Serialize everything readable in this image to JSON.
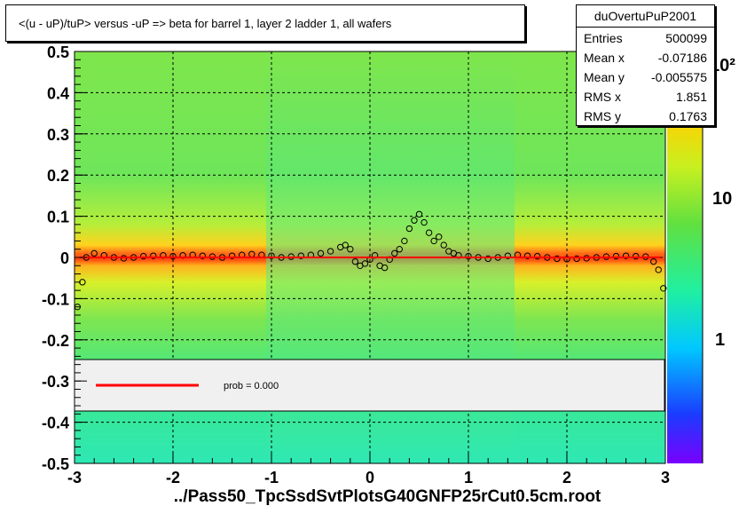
{
  "title": "<(u - uP)/tuP>  versus  -uP => beta for barrel 1, layer 2 ladder 1, all wafers",
  "stats": {
    "name": "duOvertuPuP2001",
    "rows": [
      {
        "label": "Entries",
        "value": "500099"
      },
      {
        "label": "Mean x",
        "value": "-0.07186"
      },
      {
        "label": "Mean y",
        "value": "-0.005575"
      },
      {
        "label": "RMS x",
        "value": "1.851"
      },
      {
        "label": "RMS y",
        "value": "0.1763"
      }
    ]
  },
  "footer": "../Pass50_TpcSsdSvtPlotsG40GNFP25rCut0.5cm.root",
  "legend": {
    "fit_label": "prob = 0.000"
  },
  "colors": {
    "fit_line": "#ff0000",
    "grid": "#000000"
  },
  "chart_data": {
    "type": "heatmap",
    "title": "<(u - uP)/tuP>  versus  -uP => beta for barrel 1, layer 2 ladder 1, all wafers",
    "xlim": [
      -3,
      3
    ],
    "ylim": [
      -0.5,
      0.5
    ],
    "x_ticks": [
      -3,
      -2,
      -1,
      0,
      1,
      2,
      3
    ],
    "x_tick_labels": [
      "-3",
      "-2",
      "-1",
      "0",
      "1",
      "2",
      "3"
    ],
    "y_ticks": [
      -0.5,
      -0.4,
      -0.3,
      -0.2,
      -0.1,
      0,
      0.1,
      0.2,
      0.3,
      0.4,
      0.5
    ],
    "y_tick_labels": [
      "-0.5",
      "-0.4",
      "-0.3",
      "-0.2",
      "-0.1",
      "0",
      "0.1",
      "0.2",
      "0.3",
      "0.4",
      "0.5"
    ],
    "grid": true,
    "colorbar": {
      "scale": "log",
      "tick_labels": [
        "1",
        "10",
        "10²"
      ]
    },
    "fit_line": {
      "name": "prob = 0.000",
      "y": 0
    },
    "profile_points": [
      {
        "x": -2.97,
        "y": -0.12
      },
      {
        "x": -2.92,
        "y": -0.06
      },
      {
        "x": -2.88,
        "y": 0.0
      },
      {
        "x": -2.8,
        "y": 0.01
      },
      {
        "x": -2.7,
        "y": 0.005
      },
      {
        "x": -2.6,
        "y": 0.0
      },
      {
        "x": -2.5,
        "y": -0.002
      },
      {
        "x": -2.4,
        "y": 0.0
      },
      {
        "x": -2.3,
        "y": 0.003
      },
      {
        "x": -2.2,
        "y": 0.004
      },
      {
        "x": -2.1,
        "y": 0.005
      },
      {
        "x": -2.0,
        "y": 0.003
      },
      {
        "x": -1.9,
        "y": 0.005
      },
      {
        "x": -1.8,
        "y": 0.006
      },
      {
        "x": -1.7,
        "y": 0.004
      },
      {
        "x": -1.6,
        "y": 0.002
      },
      {
        "x": -1.5,
        "y": 0.0
      },
      {
        "x": -1.4,
        "y": 0.004
      },
      {
        "x": -1.3,
        "y": 0.006
      },
      {
        "x": -1.2,
        "y": 0.008
      },
      {
        "x": -1.1,
        "y": 0.006
      },
      {
        "x": -1.0,
        "y": 0.004
      },
      {
        "x": -0.9,
        "y": 0.0
      },
      {
        "x": -0.8,
        "y": 0.002
      },
      {
        "x": -0.7,
        "y": 0.004
      },
      {
        "x": -0.6,
        "y": 0.006
      },
      {
        "x": -0.5,
        "y": 0.01
      },
      {
        "x": -0.4,
        "y": 0.015
      },
      {
        "x": -0.3,
        "y": 0.025
      },
      {
        "x": -0.25,
        "y": 0.03
      },
      {
        "x": -0.2,
        "y": 0.02
      },
      {
        "x": -0.15,
        "y": -0.01
      },
      {
        "x": -0.1,
        "y": -0.02
      },
      {
        "x": -0.05,
        "y": -0.015
      },
      {
        "x": 0.0,
        "y": -0.005
      },
      {
        "x": 0.05,
        "y": 0.005
      },
      {
        "x": 0.1,
        "y": -0.02
      },
      {
        "x": 0.15,
        "y": -0.025
      },
      {
        "x": 0.2,
        "y": -0.005
      },
      {
        "x": 0.25,
        "y": 0.01
      },
      {
        "x": 0.3,
        "y": 0.02
      },
      {
        "x": 0.35,
        "y": 0.04
      },
      {
        "x": 0.4,
        "y": 0.07
      },
      {
        "x": 0.45,
        "y": 0.09
      },
      {
        "x": 0.5,
        "y": 0.105
      },
      {
        "x": 0.55,
        "y": 0.085
      },
      {
        "x": 0.6,
        "y": 0.06
      },
      {
        "x": 0.65,
        "y": 0.04
      },
      {
        "x": 0.7,
        "y": 0.05
      },
      {
        "x": 0.75,
        "y": 0.03
      },
      {
        "x": 0.8,
        "y": 0.015
      },
      {
        "x": 0.85,
        "y": 0.01
      },
      {
        "x": 0.9,
        "y": 0.005
      },
      {
        "x": 1.0,
        "y": 0.003
      },
      {
        "x": 1.1,
        "y": 0.0
      },
      {
        "x": 1.2,
        "y": -0.003
      },
      {
        "x": 1.3,
        "y": 0.0
      },
      {
        "x": 1.4,
        "y": 0.004
      },
      {
        "x": 1.5,
        "y": 0.006
      },
      {
        "x": 1.6,
        "y": 0.004
      },
      {
        "x": 1.7,
        "y": 0.003
      },
      {
        "x": 1.8,
        "y": 0.0
      },
      {
        "x": 1.9,
        "y": -0.003
      },
      {
        "x": 2.0,
        "y": -0.004
      },
      {
        "x": 2.1,
        "y": -0.003
      },
      {
        "x": 2.2,
        "y": -0.002
      },
      {
        "x": 2.3,
        "y": 0.0
      },
      {
        "x": 2.4,
        "y": 0.002
      },
      {
        "x": 2.5,
        "y": 0.003
      },
      {
        "x": 2.6,
        "y": 0.004
      },
      {
        "x": 2.7,
        "y": 0.003
      },
      {
        "x": 2.8,
        "y": 0.002
      },
      {
        "x": 2.88,
        "y": -0.01
      },
      {
        "x": 2.93,
        "y": -0.03
      },
      {
        "x": 2.98,
        "y": -0.075
      }
    ]
  }
}
